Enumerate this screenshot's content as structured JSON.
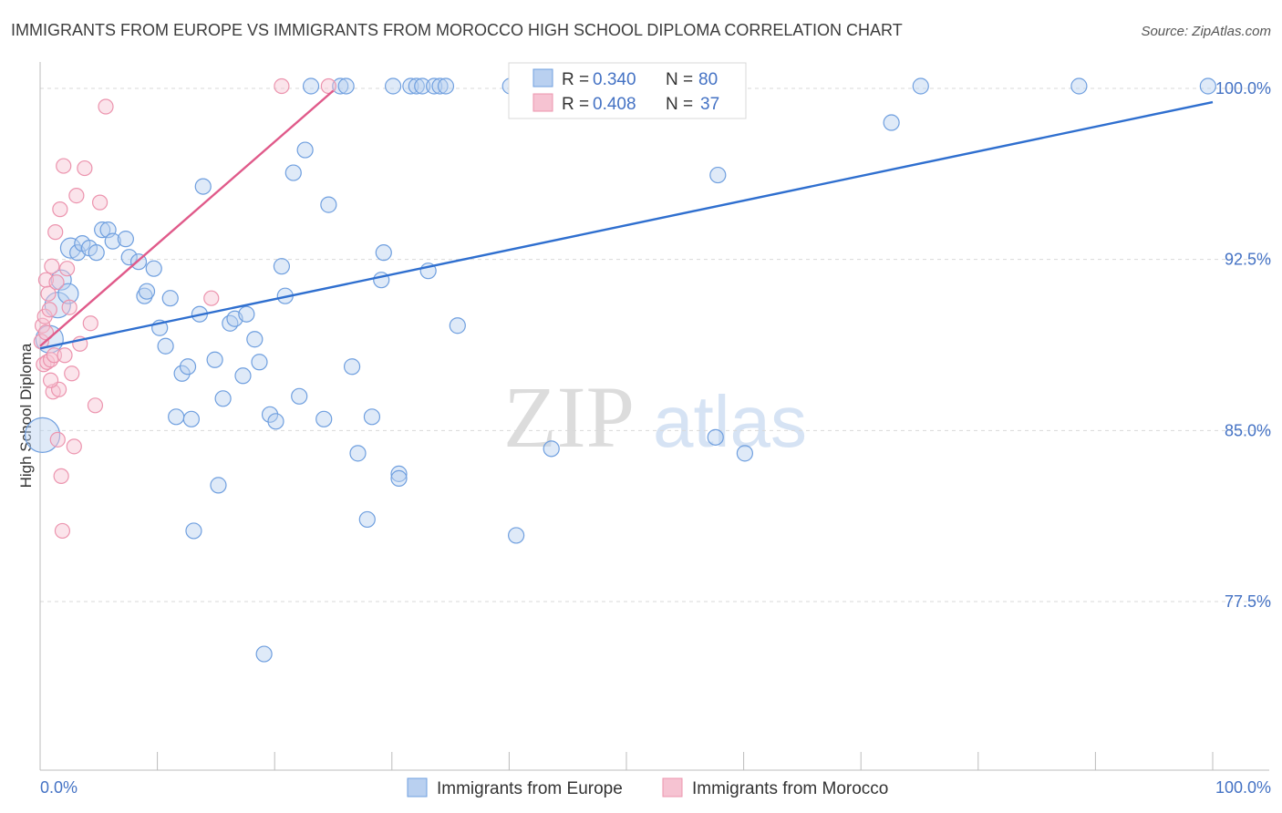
{
  "chart_data": {
    "type": "scatter",
    "title": "IMMIGRANTS FROM EUROPE VS IMMIGRANTS FROM MOROCCO HIGH SCHOOL DIPLOMA CORRELATION CHART",
    "source": "Source: ZipAtlas.com",
    "xlabel": "",
    "ylabel": "High School Diploma",
    "xlim": [
      0,
      100
    ],
    "ylim": [
      70,
      101
    ],
    "x_tick_labels": [
      "0.0%",
      "100.0%"
    ],
    "y_ticks": [
      {
        "value": 100.0,
        "label": "100.0%"
      },
      {
        "value": 92.5,
        "label": "92.5%"
      },
      {
        "value": 85.0,
        "label": "85.0%"
      },
      {
        "value": 77.5,
        "label": "77.5%"
      }
    ],
    "watermark": {
      "zip": "ZIP",
      "atlas": "atlas"
    },
    "stats_legend": [
      {
        "r_label": "R =",
        "r_value": "0.340",
        "n_label": "N =",
        "n_value": "80"
      },
      {
        "r_label": "R =",
        "r_value": "0.408",
        "n_label": "N =",
        "n_value": "37"
      }
    ],
    "series": [
      {
        "name": "Immigrants from Europe",
        "color": "#6f9fdf",
        "fill": "#b9d0f0",
        "trend": {
          "x0": 0.0,
          "y0": 88.6,
          "x1": 100.0,
          "y1": 99.4,
          "color": "#2f6fcf"
        },
        "points": [
          [
            0.2,
            84.8
          ],
          [
            0.8,
            89.0
          ],
          [
            1.5,
            90.5
          ],
          [
            1.8,
            91.6
          ],
          [
            2.4,
            91.0
          ],
          [
            2.6,
            93.0
          ],
          [
            3.2,
            92.8
          ],
          [
            3.6,
            93.2
          ],
          [
            4.2,
            93.0
          ],
          [
            4.8,
            92.8
          ],
          [
            5.3,
            93.8
          ],
          [
            5.8,
            93.8
          ],
          [
            6.2,
            93.3
          ],
          [
            7.3,
            93.4
          ],
          [
            7.6,
            92.6
          ],
          [
            8.4,
            92.4
          ],
          [
            8.9,
            90.9
          ],
          [
            9.1,
            91.1
          ],
          [
            9.7,
            92.1
          ],
          [
            10.2,
            89.5
          ],
          [
            10.7,
            88.7
          ],
          [
            11.1,
            90.8
          ],
          [
            11.6,
            85.6
          ],
          [
            12.1,
            87.5
          ],
          [
            12.6,
            87.8
          ],
          [
            12.9,
            85.5
          ],
          [
            13.1,
            80.6
          ],
          [
            13.6,
            90.1
          ],
          [
            13.9,
            95.7
          ],
          [
            14.9,
            88.1
          ],
          [
            15.2,
            82.6
          ],
          [
            15.6,
            86.4
          ],
          [
            16.2,
            89.7
          ],
          [
            16.6,
            89.9
          ],
          [
            17.3,
            87.4
          ],
          [
            17.6,
            90.1
          ],
          [
            18.3,
            89.0
          ],
          [
            18.7,
            88.0
          ],
          [
            19.1,
            75.2
          ],
          [
            19.6,
            85.7
          ],
          [
            20.1,
            85.4
          ],
          [
            20.6,
            92.2
          ],
          [
            20.9,
            90.9
          ],
          [
            21.6,
            96.3
          ],
          [
            22.1,
            86.5
          ],
          [
            22.6,
            97.3
          ],
          [
            23.1,
            100.1
          ],
          [
            24.2,
            85.5
          ],
          [
            24.6,
            94.9
          ],
          [
            25.6,
            100.1
          ],
          [
            26.1,
            100.1
          ],
          [
            26.6,
            87.8
          ],
          [
            27.1,
            84.0
          ],
          [
            27.9,
            81.1
          ],
          [
            28.3,
            85.6
          ],
          [
            29.1,
            91.6
          ],
          [
            29.3,
            92.8
          ],
          [
            30.1,
            100.1
          ],
          [
            30.6,
            83.1
          ],
          [
            30.6,
            82.9
          ],
          [
            31.6,
            100.1
          ],
          [
            32.1,
            100.1
          ],
          [
            32.6,
            100.1
          ],
          [
            33.1,
            92.0
          ],
          [
            33.6,
            100.1
          ],
          [
            34.1,
            100.1
          ],
          [
            34.6,
            100.1
          ],
          [
            35.6,
            89.6
          ],
          [
            40.1,
            100.1
          ],
          [
            40.6,
            80.4
          ],
          [
            43.6,
            84.2
          ],
          [
            47.6,
            100.1
          ],
          [
            57.6,
            100.1
          ],
          [
            57.6,
            84.7
          ],
          [
            57.8,
            96.2
          ],
          [
            60.1,
            84.0
          ],
          [
            72.6,
            98.5
          ],
          [
            75.1,
            100.1
          ],
          [
            88.6,
            100.1
          ],
          [
            99.6,
            100.1
          ]
        ]
      },
      {
        "name": "Immigrants from Morocco",
        "color": "#ec94ae",
        "fill": "#f6c3d2",
        "trend": {
          "x0": 0.0,
          "y0": 88.7,
          "x1": 25.0,
          "y1": 99.9,
          "color": "#e05a8a"
        },
        "points": [
          [
            0.1,
            88.9
          ],
          [
            0.2,
            89.6
          ],
          [
            0.3,
            87.9
          ],
          [
            0.4,
            90.0
          ],
          [
            0.5,
            91.6
          ],
          [
            0.6,
            88.0
          ],
          [
            0.7,
            91.0
          ],
          [
            0.8,
            90.3
          ],
          [
            0.9,
            88.1
          ],
          [
            1.0,
            92.2
          ],
          [
            1.1,
            86.7
          ],
          [
            1.2,
            88.3
          ],
          [
            1.3,
            93.7
          ],
          [
            1.4,
            91.5
          ],
          [
            1.5,
            84.6
          ],
          [
            1.6,
            86.8
          ],
          [
            1.7,
            94.7
          ],
          [
            1.8,
            83.0
          ],
          [
            1.9,
            80.6
          ],
          [
            2.0,
            96.6
          ],
          [
            2.1,
            88.3
          ],
          [
            2.3,
            92.1
          ],
          [
            2.5,
            90.4
          ],
          [
            2.7,
            87.5
          ],
          [
            2.9,
            84.3
          ],
          [
            3.1,
            95.3
          ],
          [
            3.4,
            88.8
          ],
          [
            3.8,
            96.5
          ],
          [
            4.3,
            89.7
          ],
          [
            4.7,
            86.1
          ],
          [
            5.1,
            95.0
          ],
          [
            5.6,
            99.2
          ],
          [
            14.6,
            90.8
          ],
          [
            20.6,
            100.1
          ],
          [
            24.6,
            100.1
          ],
          [
            0.9,
            87.2
          ],
          [
            0.5,
            89.3
          ]
        ]
      }
    ]
  }
}
